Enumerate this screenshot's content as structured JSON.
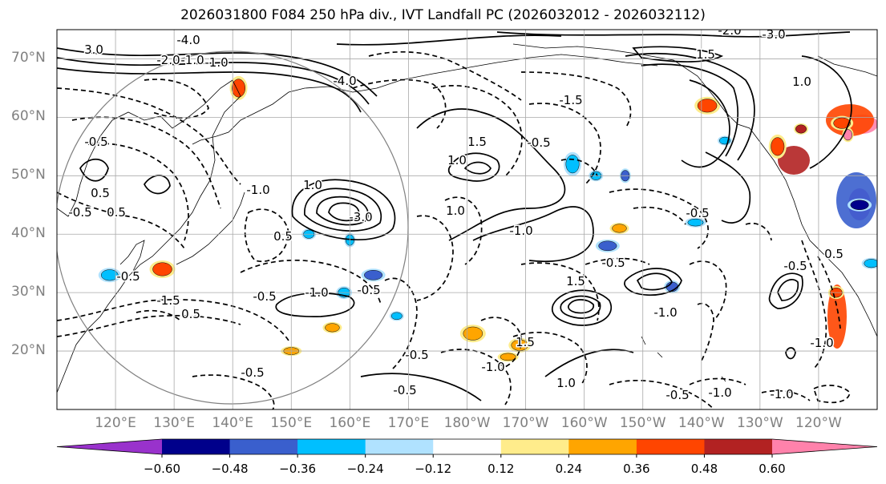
{
  "chart_data": {
    "type": "contour-map",
    "title": "2026031800 F084 250 hPa div., IVT Landfall PC (2026032012 - 2026032112)",
    "projection": "Plate Carree, central longitude 180",
    "lat_labels": [
      "70°N",
      "60°N",
      "50°N",
      "40°N",
      "30°N",
      "20°N"
    ],
    "lon_labels": [
      "120°E",
      "130°E",
      "140°E",
      "150°E",
      "160°E",
      "170°E",
      "180°W",
      "170°W",
      "160°W",
      "150°W",
      "140°W",
      "130°W",
      "120°W"
    ],
    "lon_range_deg": [
      110,
      250
    ],
    "lat_range_deg": [
      10,
      75
    ],
    "contour_labels": [
      "3.0",
      "-2.0",
      "-1.0",
      "-4.0",
      "-2.0",
      "-3.0",
      "-1.0",
      "-4.0",
      "1.0",
      "1.5",
      "-1.5",
      "-0.5",
      "0.5",
      "-0.5",
      "0.5",
      "-3.0",
      "1.0",
      "-1.0",
      "-1.0",
      "-0.5",
      "1.5",
      "-1.5",
      "0.5",
      "-0.5",
      "-0.5",
      "1.0",
      "0.5",
      "1.5",
      "-0.5",
      "-0.5",
      "-0.5",
      "1.0",
      "1.0",
      "-0.5",
      "0.5",
      "-1.0",
      "-1.0",
      "1.5",
      "-0.5",
      "-1.0",
      "-0.5",
      "-0.5",
      "-1.0",
      "-1.0",
      "-0.5",
      "-1.0"
    ],
    "colorbar": {
      "ticks": [
        "−0.60",
        "−0.48",
        "−0.36",
        "−0.24",
        "−0.12",
        "0.12",
        "0.24",
        "0.36",
        "0.48",
        "0.60"
      ],
      "colors": [
        "#9932cc",
        "#00008b",
        "#3a5fcd",
        "#00bfff",
        "#b0e2ff",
        "#ffffff",
        "#ffec8b",
        "#ffa500",
        "#ff4500",
        "#b22222",
        "#ff82ab"
      ],
      "extend": "both"
    },
    "shaded_blobs": [
      {
        "lon": 128,
        "lat": 34,
        "value": 0.42
      },
      {
        "lon": 119,
        "lat": 33,
        "value": -0.36
      },
      {
        "lon": 141,
        "lat": 65,
        "value": 0.36
      },
      {
        "lon": 153,
        "lat": 40,
        "value": -0.3
      },
      {
        "lon": 160,
        "lat": 39,
        "value": -0.3
      },
      {
        "lon": 164,
        "lat": 33,
        "value": -0.42
      },
      {
        "lon": 159,
        "lat": 30,
        "value": -0.3
      },
      {
        "lon": 157,
        "lat": 24,
        "value": 0.3
      },
      {
        "lon": 150,
        "lat": 20,
        "value": 0.3
      },
      {
        "lon": 168,
        "lat": 26,
        "value": -0.3
      },
      {
        "lon": 181,
        "lat": 23,
        "value": 0.3
      },
      {
        "lon": 189,
        "lat": 21,
        "value": 0.3
      },
      {
        "lon": 198,
        "lat": 52,
        "value": -0.3
      },
      {
        "lon": 202,
        "lat": 50,
        "value": -0.3
      },
      {
        "lon": 207,
        "lat": 50,
        "value": -0.42
      },
      {
        "lon": 204,
        "lat": 38,
        "value": -0.42
      },
      {
        "lon": 215,
        "lat": 31,
        "value": -0.42
      },
      {
        "lon": 206,
        "lat": 41,
        "value": 0.3
      },
      {
        "lon": 219,
        "lat": 42,
        "value": -0.3
      },
      {
        "lon": 224,
        "lat": 56,
        "value": -0.3
      },
      {
        "lon": 221,
        "lat": 62,
        "value": 0.42
      },
      {
        "lon": 244,
        "lat": 59,
        "value": 0.4
      },
      {
        "lon": 233,
        "lat": 55,
        "value": 0.42
      },
      {
        "lon": 237,
        "lat": 58,
        "value": 0.48
      },
      {
        "lon": 245,
        "lat": 57,
        "value": 0.62
      },
      {
        "lon": 247,
        "lat": 45,
        "value": -0.55
      },
      {
        "lon": 243,
        "lat": 30,
        "value": 0.42
      },
      {
        "lon": 249,
        "lat": 35,
        "value": -0.3
      },
      {
        "lon": 187,
        "lat": 19,
        "value": 0.3
      }
    ]
  }
}
